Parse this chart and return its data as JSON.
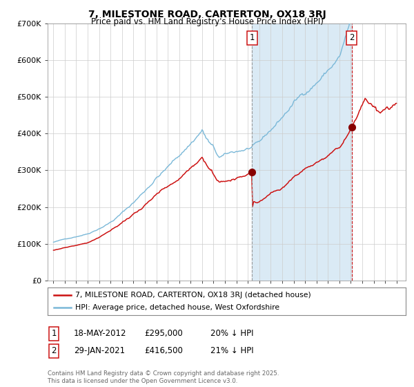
{
  "title": "7, MILESTONE ROAD, CARTERTON, OX18 3RJ",
  "subtitle": "Price paid vs. HM Land Registry's House Price Index (HPI)",
  "legend_line1": "7, MILESTONE ROAD, CARTERTON, OX18 3RJ (detached house)",
  "legend_line2": "HPI: Average price, detached house, West Oxfordshire",
  "marker1_label": "1",
  "marker1_date": "18-MAY-2012",
  "marker1_price": 295000,
  "marker1_price_str": "£295,000",
  "marker1_pct": "20% ↓ HPI",
  "marker1_x": 2012.38,
  "marker2_label": "2",
  "marker2_date": "29-JAN-2021",
  "marker2_price": 416500,
  "marker2_price_str": "£416,500",
  "marker2_pct": "21% ↓ HPI",
  "marker2_x": 2021.08,
  "footnote": "Contains HM Land Registry data © Crown copyright and database right 2025.\nThis data is licensed under the Open Government Licence v3.0.",
  "hpi_color": "#7ab8d8",
  "property_color": "#cc1111",
  "marker_color": "#880000",
  "vline1_color": "#aaaaaa",
  "vline2_color": "#cc1111",
  "shade_color": "#daeaf5",
  "grid_color": "#cccccc",
  "bg_color": "#ffffff",
  "ylim_min": 0,
  "ylim_max": 700000,
  "ytick_vals": [
    0,
    100000,
    200000,
    300000,
    400000,
    500000,
    600000,
    700000
  ],
  "ytick_labels": [
    "£0",
    "£100K",
    "£200K",
    "£300K",
    "£400K",
    "£500K",
    "£600K",
    "£700K"
  ],
  "xmin": 1994.5,
  "xmax": 2025.8
}
